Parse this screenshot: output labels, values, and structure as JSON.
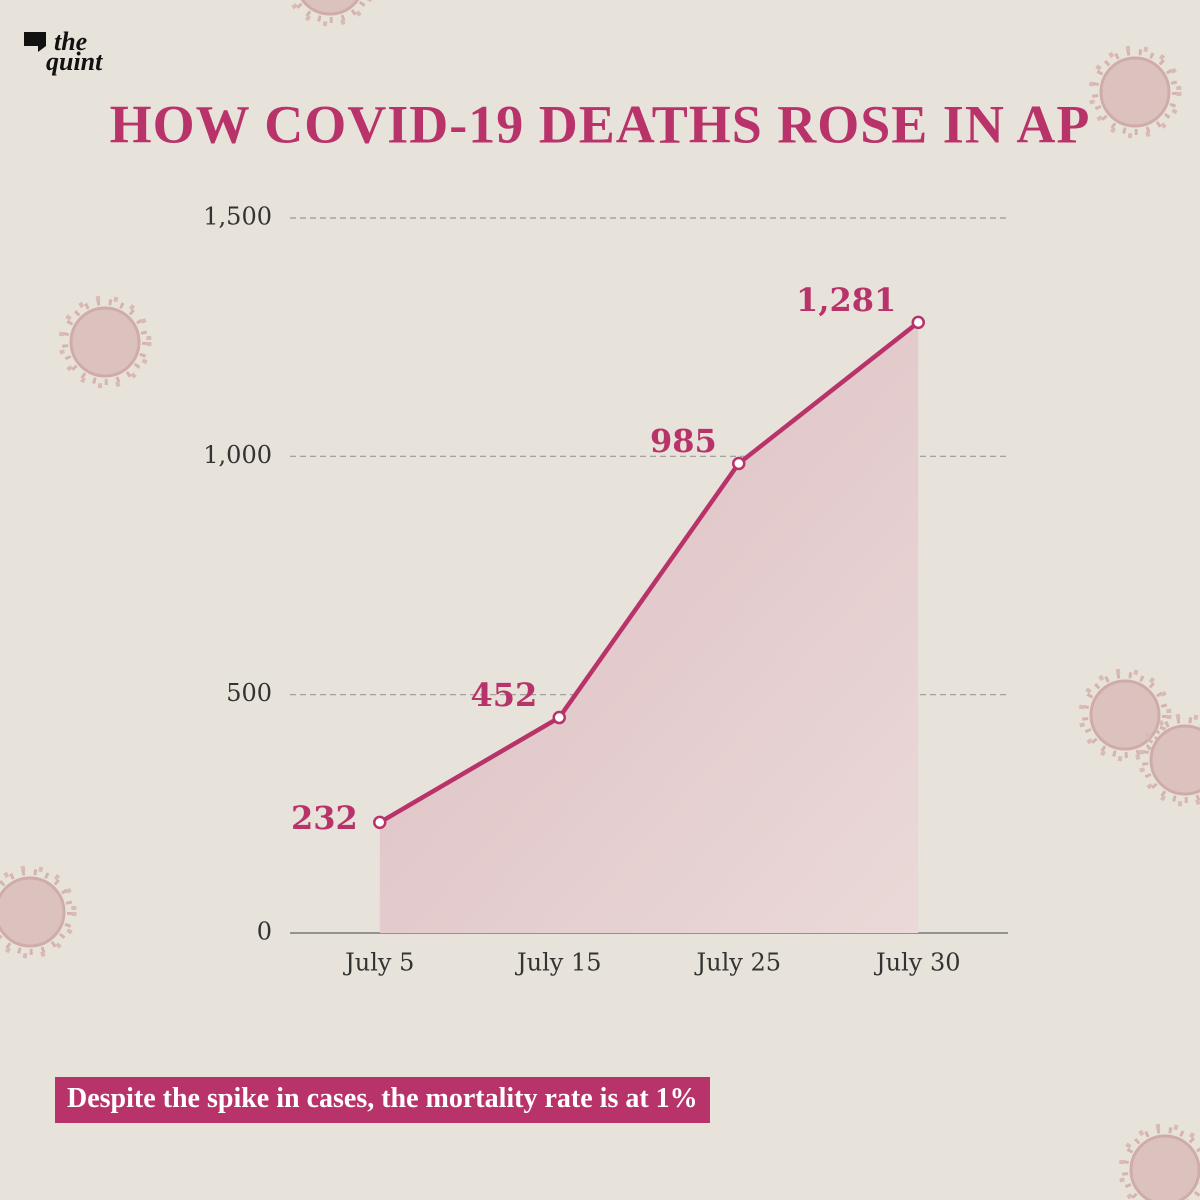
{
  "logo": {
    "line1": "the",
    "line2": "quint"
  },
  "chart_data": {
    "type": "line",
    "title": "HOW COVID-19 DEATHS ROSE IN AP",
    "categories": [
      "July 5",
      "July 15",
      "July 25",
      "July 30"
    ],
    "values": [
      232,
      452,
      985,
      1281
    ],
    "value_labels": [
      "232",
      "452",
      "985",
      "1,281"
    ],
    "color": "#b8336a",
    "ylim": [
      0,
      1500
    ],
    "yticks": [
      0,
      500,
      {
        "value": 1000,
        "label": "1,000"
      },
      {
        "value": 1500,
        "label": "1,500"
      }
    ],
    "grid": true,
    "note": "Despite the spike in cases, the mortality rate is at 1%"
  }
}
